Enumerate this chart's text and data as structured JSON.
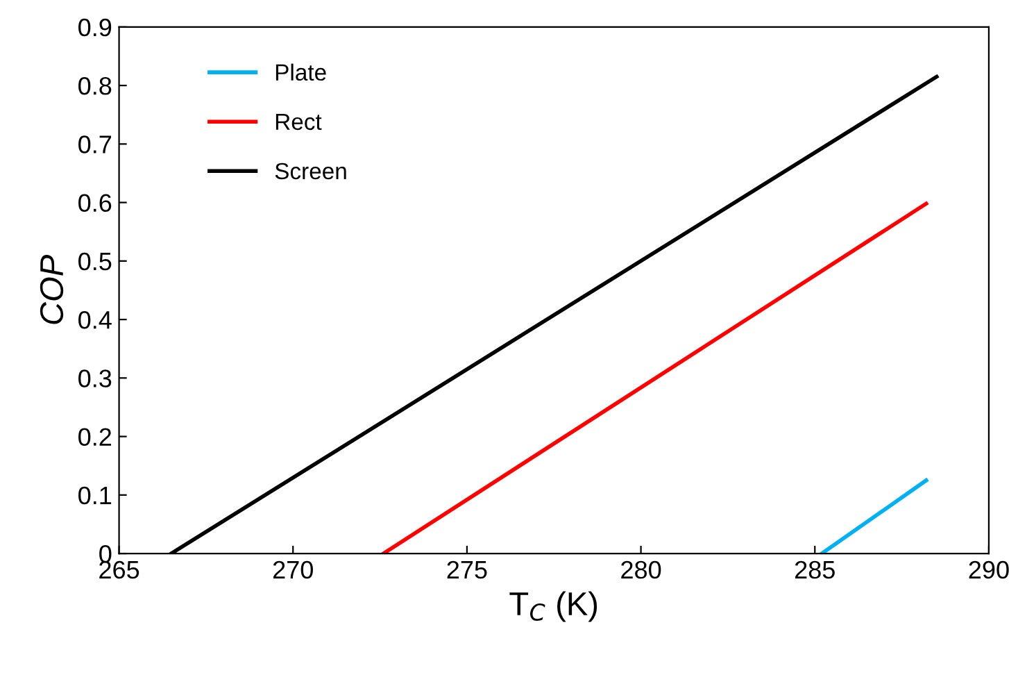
{
  "chart_data": {
    "type": "line",
    "xlabel": "T$_{C}$ (K)",
    "ylabel": "COP",
    "series": [
      {
        "name": "Plate",
        "color": "#00b0f0",
        "x": [
          285.2,
          288.2
        ],
        "values": [
          0,
          0.125
        ]
      },
      {
        "name": "Rect",
        "color": "#ff0000",
        "x": [
          272.6,
          288.2
        ],
        "values": [
          0,
          0.598
        ]
      },
      {
        "name": "Screen",
        "color": "#000000",
        "x": [
          266.5,
          288.5
        ],
        "values": [
          0,
          0.815
        ]
      }
    ],
    "xlim": [
      265,
      290
    ],
    "xticks": [
      265,
      270,
      275,
      280,
      285,
      290
    ],
    "ylim": [
      0,
      0.9
    ],
    "yticks": [
      0,
      0.1,
      0.2,
      0.3,
      0.4,
      0.5,
      0.6,
      0.7,
      0.8,
      0.9
    ],
    "grid": false,
    "legend": "top left",
    "marker": "none",
    "line_style": "solid"
  }
}
